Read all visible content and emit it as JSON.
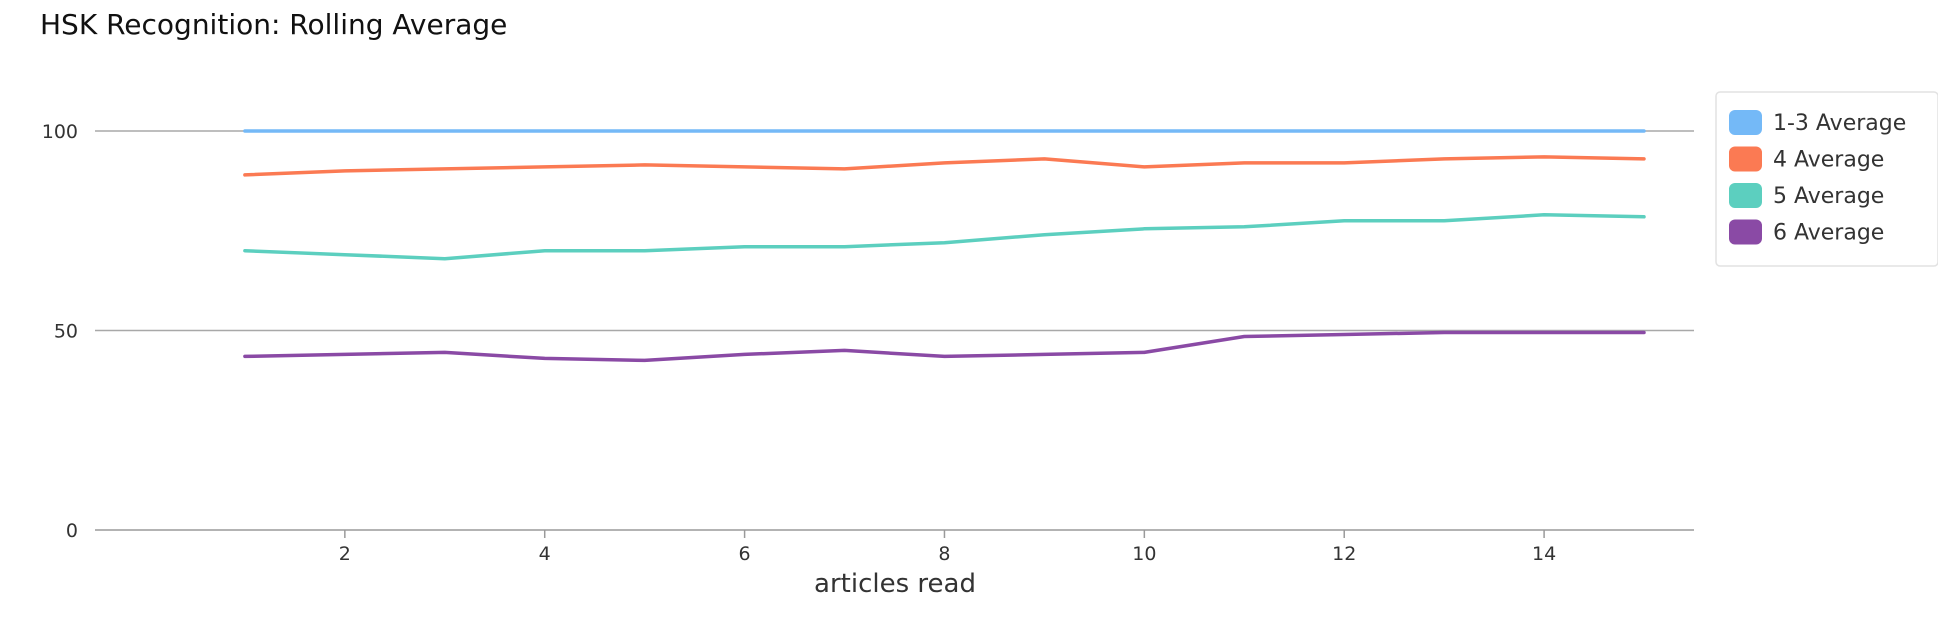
{
  "chart_data": {
    "type": "line",
    "title": "HSK Recognition: Rolling Average",
    "xlabel": "articles read",
    "ylabel": "",
    "x": [
      1,
      2,
      3,
      4,
      5,
      6,
      7,
      8,
      9,
      10,
      11,
      12,
      13,
      14,
      15
    ],
    "xlim": [
      -0.5,
      15.5
    ],
    "ylim": [
      0,
      100
    ],
    "x_ticks": [
      2,
      4,
      6,
      8,
      10,
      12,
      14
    ],
    "y_ticks": [
      0,
      50,
      100
    ],
    "grid": true,
    "legend_position": "top-right",
    "series": [
      {
        "name": "1-3 Average",
        "color": "#74b9f7",
        "values": [
          100,
          100,
          100,
          100,
          100,
          100,
          100,
          100,
          100,
          100,
          100,
          100,
          100,
          100,
          100
        ]
      },
      {
        "name": "4 Average",
        "color": "#fb7a53",
        "values": [
          89,
          90,
          90.5,
          91,
          91.5,
          91,
          90.5,
          92,
          93,
          91,
          92,
          92,
          93,
          93.5,
          93
        ]
      },
      {
        "name": "5 Average",
        "color": "#5ccfbf",
        "values": [
          70,
          69,
          68,
          70,
          70,
          71,
          71,
          72,
          74,
          75.5,
          76,
          77.5,
          77.5,
          79,
          78.5
        ]
      },
      {
        "name": "6 Average",
        "color": "#8a4aa5",
        "values": [
          43.5,
          44,
          44.5,
          43,
          42.5,
          44,
          45,
          43.5,
          44,
          44.5,
          48.5,
          49,
          49.5,
          49.5,
          49.5
        ]
      }
    ]
  }
}
